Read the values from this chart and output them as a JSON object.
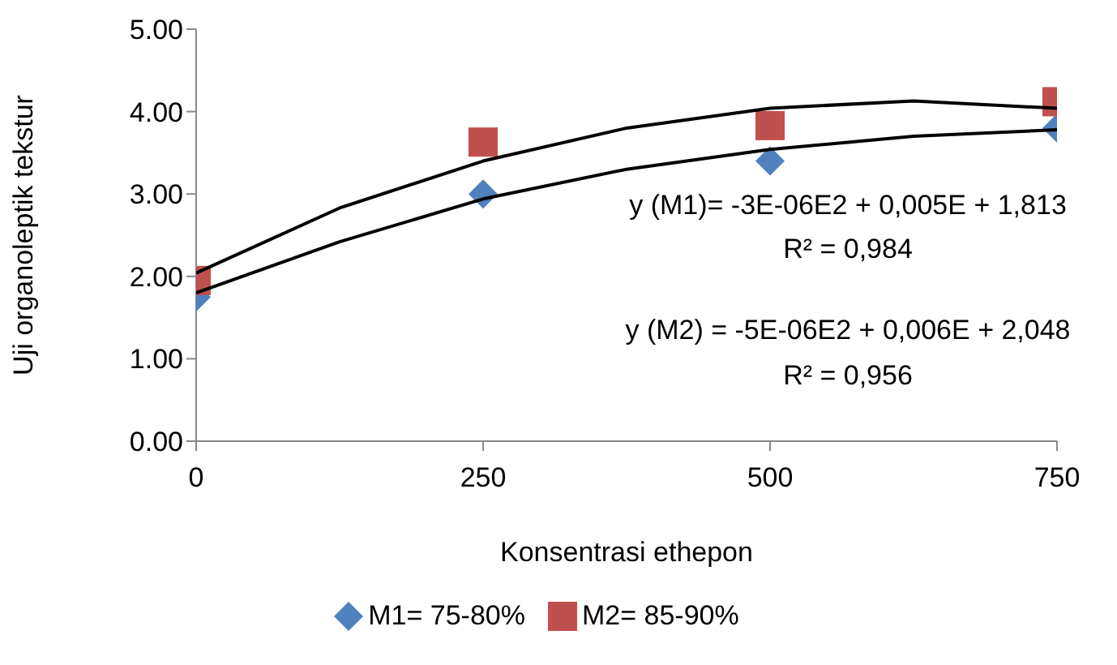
{
  "chart_data": {
    "type": "scatter",
    "xlabel": "Konsentrasi ethepon",
    "ylabel": "Uji organoleptik tekstur",
    "x": [
      0,
      250,
      500,
      750
    ],
    "xlim": [
      0,
      750
    ],
    "xticks": [
      0,
      250,
      500,
      750
    ],
    "ylim": [
      0,
      5
    ],
    "yticks": [
      {
        "value": 0,
        "label": "0.00"
      },
      {
        "value": 1,
        "label": "1.00"
      },
      {
        "value": 2,
        "label": "2.00"
      },
      {
        "value": 3,
        "label": "3.00"
      },
      {
        "value": 4,
        "label": "4.00"
      },
      {
        "value": 5,
        "label": "5.00"
      }
    ],
    "grid": false,
    "legend": "bottom",
    "series": [
      {
        "name": "M1= 75-80%",
        "color": "#4f81bd",
        "marker": "diamond",
        "values": [
          1.75,
          3.0,
          3.4,
          3.8
        ]
      },
      {
        "name": "M2= 85-90%",
        "color": "#c0504d",
        "marker": "square",
        "values": [
          1.95,
          3.63,
          3.83,
          4.12
        ]
      },
      {
        "type": "line",
        "color": "#000000",
        "marker": "none",
        "x": [
          0,
          125,
          250,
          375,
          500,
          625,
          750
        ],
        "values": [
          1.8,
          2.42,
          2.94,
          3.3,
          3.54,
          3.7,
          3.78
        ]
      },
      {
        "type": "line",
        "color": "#000000",
        "marker": "none",
        "x": [
          0,
          125,
          250,
          375,
          500,
          625,
          750
        ],
        "values": [
          2.04,
          2.83,
          3.4,
          3.8,
          4.04,
          4.13,
          4.04
        ]
      }
    ],
    "annotations": [
      "y  (M1)= -3E-06E2 + 0,005E + 1,813",
      "R² = 0,984",
      "y (M2) = -5E-06E2 + 0,006E + 2,048",
      "R² = 0,956"
    ]
  }
}
